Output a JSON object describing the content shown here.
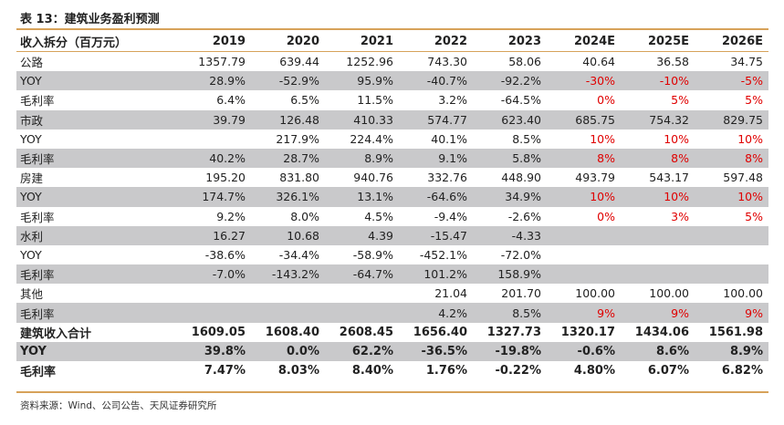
{
  "title": "表 13：建筑业务盈利预测",
  "header": {
    "label": "收入拆分（百万元）",
    "years": [
      "2019",
      "2020",
      "2021",
      "2022",
      "2023",
      "2024E",
      "2025E",
      "2026E"
    ]
  },
  "rows": [
    {
      "label": "公路",
      "values": [
        "1357.79",
        "639.44",
        "1252.96",
        "743.30",
        "58.06",
        "40.64",
        "36.58",
        "34.75"
      ],
      "red": [],
      "grey": false,
      "bold": false
    },
    {
      "label": "YOY",
      "values": [
        "28.9%",
        "-52.9%",
        "95.9%",
        "-40.7%",
        "-92.2%",
        "-30%",
        "-10%",
        "-5%"
      ],
      "red": [
        5,
        6,
        7
      ],
      "grey": true,
      "bold": false
    },
    {
      "label": "毛利率",
      "values": [
        "6.4%",
        "6.5%",
        "11.5%",
        "3.2%",
        "-64.5%",
        "0%",
        "5%",
        "5%"
      ],
      "red": [
        5,
        6,
        7
      ],
      "grey": false,
      "bold": false
    },
    {
      "label": "市政",
      "values": [
        "39.79",
        "126.48",
        "410.33",
        "574.77",
        "623.40",
        "685.75",
        "754.32",
        "829.75"
      ],
      "red": [],
      "grey": true,
      "bold": false
    },
    {
      "label": "YOY",
      "values": [
        "",
        "217.9%",
        "224.4%",
        "40.1%",
        "8.5%",
        "10%",
        "10%",
        "10%"
      ],
      "red": [
        5,
        6,
        7
      ],
      "grey": false,
      "bold": false
    },
    {
      "label": "毛利率",
      "values": [
        "40.2%",
        "28.7%",
        "8.9%",
        "9.1%",
        "5.8%",
        "8%",
        "8%",
        "8%"
      ],
      "red": [
        5,
        6,
        7
      ],
      "grey": true,
      "bold": false
    },
    {
      "label": "房建",
      "values": [
        "195.20",
        "831.80",
        "940.76",
        "332.76",
        "448.90",
        "493.79",
        "543.17",
        "597.48"
      ],
      "red": [],
      "grey": false,
      "bold": false
    },
    {
      "label": "YOY",
      "values": [
        "174.7%",
        "326.1%",
        "13.1%",
        "-64.6%",
        "34.9%",
        "10%",
        "10%",
        "10%"
      ],
      "red": [
        5,
        6,
        7
      ],
      "grey": true,
      "bold": false
    },
    {
      "label": "毛利率",
      "values": [
        "9.2%",
        "8.0%",
        "4.5%",
        "-9.4%",
        "-2.6%",
        "0%",
        "3%",
        "5%"
      ],
      "red": [
        5,
        6,
        7
      ],
      "grey": false,
      "bold": false
    },
    {
      "label": "水利",
      "values": [
        "16.27",
        "10.68",
        "4.39",
        "-15.47",
        "-4.33",
        "",
        "",
        ""
      ],
      "red": [],
      "grey": true,
      "bold": false
    },
    {
      "label": "YOY",
      "values": [
        "-38.6%",
        "-34.4%",
        "-58.9%",
        "-452.1%",
        "-72.0%",
        "",
        "",
        ""
      ],
      "red": [],
      "grey": false,
      "bold": false
    },
    {
      "label": "毛利率",
      "values": [
        "-7.0%",
        "-143.2%",
        "-64.7%",
        "101.2%",
        "158.9%",
        "",
        "",
        ""
      ],
      "red": [],
      "grey": true,
      "bold": false
    },
    {
      "label": "其他",
      "values": [
        "",
        "",
        "",
        "21.04",
        "201.70",
        "100.00",
        "100.00",
        "100.00"
      ],
      "red": [],
      "grey": false,
      "bold": false
    },
    {
      "label": "毛利率",
      "values": [
        "",
        "",
        "",
        "4.2%",
        "8.5%",
        "9%",
        "9%",
        "9%"
      ],
      "red": [
        5,
        6,
        7
      ],
      "grey": true,
      "bold": false
    },
    {
      "label": "建筑收入合计",
      "values": [
        "1609.05",
        "1608.40",
        "2608.45",
        "1656.40",
        "1327.73",
        "1320.17",
        "1434.06",
        "1561.98"
      ],
      "red": [],
      "grey": false,
      "bold": true
    },
    {
      "label": "YOY",
      "values": [
        "39.8%",
        "0.0%",
        "62.2%",
        "-36.5%",
        "-19.8%",
        "-0.6%",
        "8.6%",
        "8.9%"
      ],
      "red": [],
      "grey": true,
      "bold": true
    },
    {
      "label": "毛利率",
      "values": [
        "7.47%",
        "8.03%",
        "8.40%",
        "1.76%",
        "-0.22%",
        "4.80%",
        "6.07%",
        "6.82%"
      ],
      "red": [],
      "grey": false,
      "bold": true
    }
  ],
  "source": "资料来源：Wind、公司公告、天风证券研究所",
  "colors": {
    "accent": "#d7a25a",
    "grey_row": "#c9c9cb",
    "red_text": "#e00000"
  }
}
